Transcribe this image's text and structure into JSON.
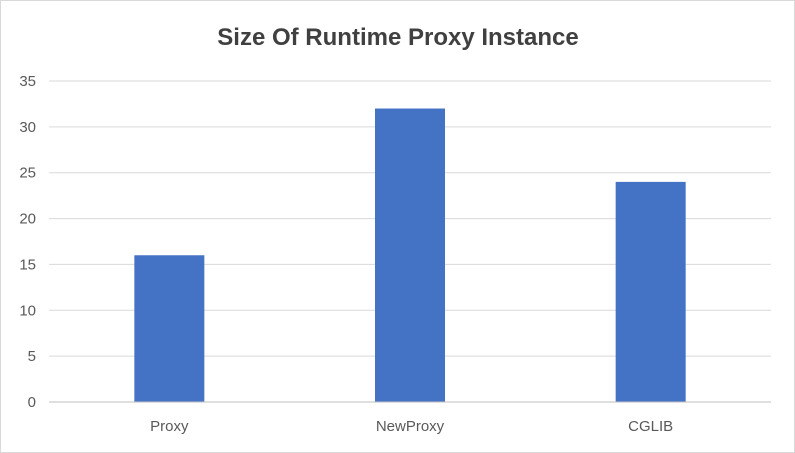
{
  "chart_data": {
    "type": "bar",
    "title": "Size Of Runtime Proxy Instance",
    "xlabel": "",
    "ylabel": "",
    "categories": [
      "Proxy",
      "NewProxy",
      "CGLIB"
    ],
    "series": [
      {
        "values": [
          16,
          32,
          24
        ],
        "color": "#4472c4"
      }
    ],
    "ylim": [
      0,
      35
    ],
    "yticks": [
      0,
      5,
      10,
      15,
      20,
      25,
      30,
      35
    ],
    "grid": true,
    "legend": "none"
  }
}
